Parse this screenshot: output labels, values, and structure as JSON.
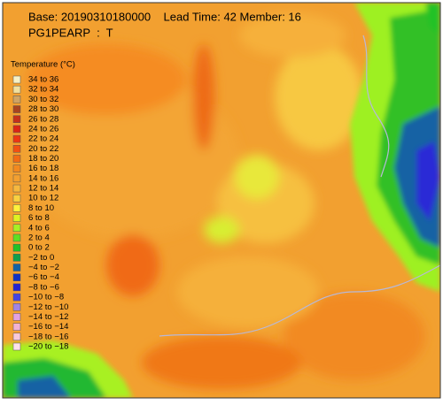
{
  "header": {
    "line1": "Base: 20190310180000    Lead Time: 42 Member: 16",
    "line2": "PG1PEARP  :  T"
  },
  "legend": {
    "title": "Temperature (°C)",
    "entries": [
      {
        "label": "34 to 36",
        "color": "#f7f1c6"
      },
      {
        "label": "32 to 34",
        "color": "#f1e0a0"
      },
      {
        "label": "30 to 32",
        "color": "#cfa465"
      },
      {
        "label": "28 to 30",
        "color": "#a8431f"
      },
      {
        "label": "26 to 28",
        "color": "#c5301a"
      },
      {
        "label": "24 to 26",
        "color": "#dc2514"
      },
      {
        "label": "22 to 24",
        "color": "#ee3512"
      },
      {
        "label": "20 to 22",
        "color": "#f24f12"
      },
      {
        "label": "18 to 20",
        "color": "#f26a14"
      },
      {
        "label": "16 to 18",
        "color": "#f2891f"
      },
      {
        "label": "14 to 16",
        "color": "#f3a030"
      },
      {
        "label": "12 to 14",
        "color": "#f6b83e"
      },
      {
        "label": "10 to 12",
        "color": "#f9d040"
      },
      {
        "label": "8 to 10",
        "color": "#fff13c"
      },
      {
        "label": "6 to 8",
        "color": "#dff222"
      },
      {
        "label": "4 to 6",
        "color": "#a8f024"
      },
      {
        "label": "2 to 4",
        "color": "#5fdf22"
      },
      {
        "label": "0 to 2",
        "color": "#22c225"
      },
      {
        "label": "−2 to 0",
        "color": "#10a04a"
      },
      {
        "label": "−4 to −2",
        "color": "#1462a4"
      },
      {
        "label": "−6 to −4",
        "color": "#1232c2"
      },
      {
        "label": "−8 to −6",
        "color": "#2322d2"
      },
      {
        "label": "−10 to −8",
        "color": "#4444e2"
      },
      {
        "label": "−12 to −10",
        "color": "#a284e2"
      },
      {
        "label": "−14 to −12",
        "color": "#e2a2e2"
      },
      {
        "label": "−16 to −14",
        "color": "#f2b2d2"
      },
      {
        "label": "−18 to −16",
        "color": "#f8c9d9"
      },
      {
        "label": "−20 to −18",
        "color": "#fce2ea"
      }
    ]
  }
}
